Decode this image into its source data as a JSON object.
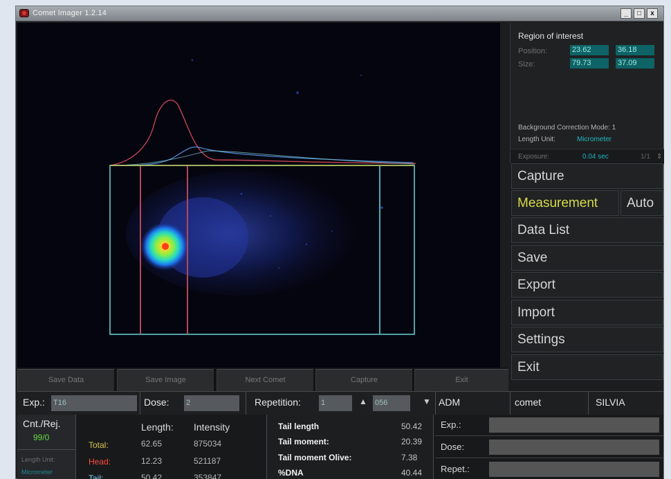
{
  "title": "Comet Imager 1.2.14",
  "window_controls": {
    "minimize": "_",
    "maximize": "□",
    "close": "x"
  },
  "roi": {
    "heading": "Region of interest",
    "position_label": "Position:",
    "position_x": "23.62",
    "position_y": "36.18",
    "size_label": "Size:",
    "size_w": "79.73",
    "size_h": "37.09"
  },
  "background_correction": "Background Correction Mode: 1",
  "length_unit_label": "Length Unit:",
  "length_unit_value": "Micrometer",
  "exposure_label": "Exposure:",
  "exposure_value": "0.04 sec",
  "exposure_extra": "1/1",
  "menu": {
    "capture": "Capture",
    "measurement": "Measurement",
    "auto": "Auto",
    "data_list": "Data List",
    "save": "Save",
    "export": "Export",
    "import": "Import",
    "settings": "Settings",
    "exit": "Exit"
  },
  "bottom_buttons": {
    "save_data": "Save Data",
    "save_image": "Save Image",
    "next_comet": "Next Comet",
    "capture": "Capture",
    "exit": "Exit"
  },
  "info_bar": {
    "exp_label": "Exp.:",
    "exp_value": "T16",
    "dose_label": "Dose:",
    "dose_value": "2",
    "repetition_label": "Repetition:",
    "repetition_value": "1",
    "counter_value": "056",
    "adm": "ADM",
    "comet": "comet",
    "silvia": "SILVIA"
  },
  "count_box": {
    "title": "Cnt./Rej.",
    "value": "99/0",
    "unit_label": "Length Unit:",
    "unit_value": "Micrometer"
  },
  "measurements": {
    "length_label": "Length:",
    "intensity_label": "Intensity",
    "rows": [
      {
        "label": "Total:",
        "length": "62.65",
        "intensity": "875034"
      },
      {
        "label": "Head:",
        "length": "12.23",
        "intensity": "521187"
      },
      {
        "label": "Tail:",
        "length": "50.42",
        "intensity": "353847"
      }
    ]
  },
  "tail_stats": [
    {
      "label": "Tail length",
      "value": "50.42"
    },
    {
      "label": "Tail moment:",
      "value": "20.39"
    },
    {
      "label": "Tail moment Olive:",
      "value": "7.38"
    },
    {
      "label": "%DNA",
      "value": "40.44"
    }
  ],
  "meta": {
    "exp_label": "Exp.:",
    "dose_label": "Dose:",
    "repet_label": "Repet.:"
  }
}
